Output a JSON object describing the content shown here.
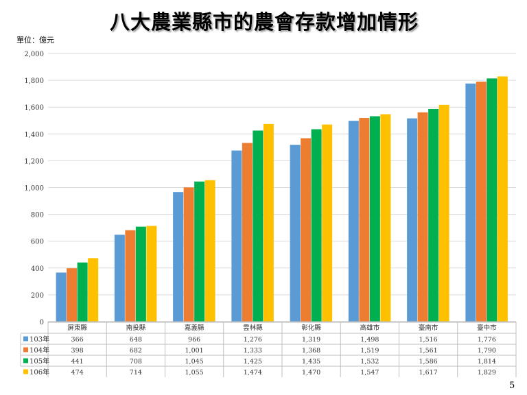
{
  "title": "八大農業縣市的農會存款增加情形",
  "unit_label": "單位：億元",
  "page_number": "5",
  "chart_data": {
    "type": "bar",
    "categories": [
      "屏東縣",
      "南投縣",
      "嘉義縣",
      "雲林縣",
      "彰化縣",
      "高雄市",
      "臺南市",
      "臺中市"
    ],
    "series": [
      {
        "name": "103年",
        "color": "#5b9bd5",
        "values": [
          366,
          648,
          966,
          1276,
          1319,
          1498,
          1516,
          1776
        ],
        "labels": [
          "366",
          "648",
          "966",
          "1,276",
          "1,319",
          "1,498",
          "1,516",
          "1,776"
        ]
      },
      {
        "name": "104年",
        "color": "#ed7d31",
        "values": [
          398,
          682,
          1001,
          1333,
          1368,
          1519,
          1561,
          1790
        ],
        "labels": [
          "398",
          "682",
          "1,001",
          "1,333",
          "1,368",
          "1,519",
          "1,561",
          "1,790"
        ]
      },
      {
        "name": "105年",
        "color": "#00b050",
        "values": [
          441,
          708,
          1045,
          1425,
          1435,
          1532,
          1586,
          1814
        ],
        "labels": [
          "441",
          "708",
          "1,045",
          "1,425",
          "1,435",
          "1,532",
          "1,586",
          "1,814"
        ]
      },
      {
        "name": "106年",
        "color": "#ffc000",
        "values": [
          474,
          714,
          1055,
          1474,
          1470,
          1547,
          1617,
          1829
        ],
        "labels": [
          "474",
          "714",
          "1,055",
          "1,474",
          "1,470",
          "1,547",
          "1,617",
          "1,829"
        ]
      }
    ],
    "ylim": [
      0,
      2000
    ],
    "yticks": [
      "0",
      "200",
      "400",
      "600",
      "800",
      "1,000",
      "1,200",
      "1,400",
      "1,600",
      "1,800",
      "2,000"
    ],
    "grid": true,
    "legend": "data-table"
  }
}
